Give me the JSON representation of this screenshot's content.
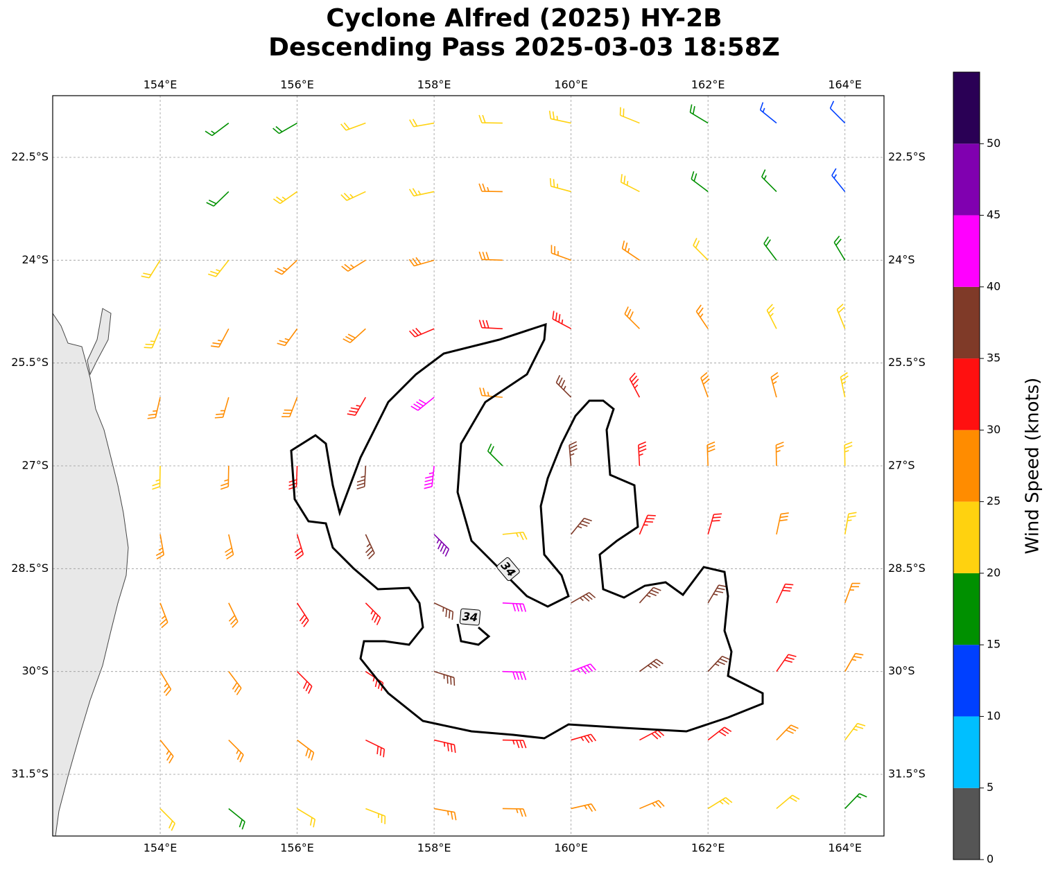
{
  "chart_data": {
    "type": "barbs",
    "title": [
      "Cyclone Alfred (2025) HY-2B",
      "Descending Pass 2025-03-03 18:58Z"
    ],
    "xlim": [
      152.43,
      164.57
    ],
    "ylim": [
      -32.4,
      -21.6
    ],
    "xticks": [
      {
        "value": 154,
        "label": "154°E"
      },
      {
        "value": 156,
        "label": "156°E"
      },
      {
        "value": 158,
        "label": "158°E"
      },
      {
        "value": 160,
        "label": "160°E"
      },
      {
        "value": 162,
        "label": "162°E"
      },
      {
        "value": 164,
        "label": "164°E"
      }
    ],
    "yticks": [
      {
        "value": -22.5,
        "label": "22.5°S"
      },
      {
        "value": -24,
        "label": "24°S"
      },
      {
        "value": -25.5,
        "label": "25.5°S"
      },
      {
        "value": -27,
        "label": "27°S"
      },
      {
        "value": -28.5,
        "label": "28.5°S"
      },
      {
        "value": -30,
        "label": "30°S"
      },
      {
        "value": -31.5,
        "label": "31.5°S"
      }
    ],
    "grid": true,
    "contour_labels": [
      "34",
      "34"
    ],
    "colorbar": {
      "label": "Wind Speed (knots)",
      "levels": [
        0,
        5,
        10,
        15,
        20,
        25,
        30,
        35,
        40,
        45,
        50,
        55
      ],
      "colors": [
        "#555555",
        "#00bfff",
        "#0040ff",
        "#009000",
        "#ffd20f",
        "#ff8c00",
        "#ff1010",
        "#7f3a28",
        "#ff00ff",
        "#8000b0",
        "#2a0055"
      ],
      "ticks": [
        0,
        5,
        10,
        15,
        20,
        25,
        30,
        35,
        40,
        45,
        50
      ]
    },
    "barbs": {
      "lon": [
        154,
        155,
        156,
        157,
        158,
        159,
        160,
        161,
        162,
        163,
        164
      ],
      "lat": [
        -22,
        -23,
        -24,
        -25,
        -26,
        -27,
        -28,
        -29,
        -30,
        -31,
        -32
      ],
      "speed": [
        [
          null,
          17,
          19,
          22,
          22,
          22,
          23,
          22,
          18,
          13,
          12
        ],
        [
          null,
          18,
          23,
          24,
          24,
          26,
          24,
          23,
          19,
          17,
          13
        ],
        [
          22,
          23,
          26,
          27,
          28,
          28,
          27,
          25,
          22,
          18,
          18
        ],
        [
          23,
          26,
          27,
          29,
          32,
          32,
          33,
          29,
          26,
          23,
          22
        ],
        [
          26,
          27,
          29,
          33,
          42,
          27,
          36,
          33,
          28,
          26,
          23
        ],
        [
          24,
          27,
          30,
          37,
          43,
          18,
          36,
          33,
          29,
          27,
          24
        ],
        [
          26,
          28,
          31,
          35,
          47,
          24,
          37,
          33,
          31,
          28,
          24
        ],
        [
          27,
          28,
          31,
          34,
          37,
          42,
          37,
          37,
          36,
          31,
          27
        ],
        [
          26,
          28,
          30,
          33,
          36,
          40,
          43,
          37,
          35,
          31,
          27
        ],
        [
          26,
          27,
          28,
          31,
          33,
          33,
          33,
          32,
          31,
          28,
          24
        ],
        [
          22,
          19,
          22,
          24,
          27,
          27,
          27,
          26,
          24,
          22,
          17
        ]
      ],
      "direction": [
        [
          46,
          53,
          60,
          70,
          80,
          91,
          102,
          112,
          121,
          129,
          135
        ],
        [
          40,
          46,
          55,
          65,
          78,
          91,
          105,
          117,
          127,
          135,
          141
        ],
        [
          32,
          38,
          47,
          58,
          74,
          92,
          110,
          124,
          135,
          143,
          149
        ],
        [
          23,
          28,
          36,
          48,
          67,
          93,
          118,
          135,
          146,
          153,
          158
        ],
        [
          13,
          16,
          21,
          30,
          51,
          95,
          135,
          152,
          160,
          165,
          168
        ],
        [
          1,
          1,
          2,
          3,
          6,
          135,
          175,
          177,
          178,
          179,
          179
        ],
        [
          350,
          347,
          343,
          335,
          315,
          264,
          219,
          203,
          196,
          192,
          190
        ],
        [
          339,
          334,
          327,
          315,
          295,
          273,
          240,
          222,
          211,
          205,
          200
        ],
        [
          329,
          323,
          315,
          303,
          287,
          272,
          249,
          234,
          223,
          215,
          210
        ],
        [
          321,
          315,
          307,
          296,
          283,
          271,
          254,
          242,
          232,
          224,
          217
        ],
        [
          315,
          309,
          301,
          291,
          280,
          271,
          257,
          247,
          238,
          230,
          224
        ]
      ]
    }
  }
}
